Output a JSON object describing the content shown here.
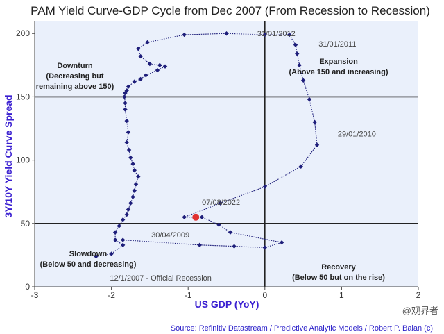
{
  "chart_data": {
    "type": "scatter",
    "title": "PAM Yield Curve-GDP Cycle from Dec 2007 (From Recession to Recession)",
    "xlabel": "US GDP (YoY)",
    "ylabel": "3Y/10Y Yield Curve Spread",
    "xlim": [
      -3,
      2
    ],
    "ylim": [
      0,
      210
    ],
    "x_ticks": [
      "-3",
      "-2",
      "-1",
      "0",
      "1",
      "2"
    ],
    "y_ticks": [
      "0",
      "50",
      "100",
      "150",
      "200"
    ],
    "reference_lines": {
      "x": 0,
      "y": [
        50,
        150
      ]
    },
    "grid": false,
    "series": [
      {
        "points": [
          {
            "x": -2.2,
            "y": 24
          },
          {
            "x": -2.0,
            "y": 26
          },
          {
            "x": -1.85,
            "y": 33
          },
          {
            "x": -1.95,
            "y": 37
          },
          {
            "x": -1.95,
            "y": 43
          },
          {
            "x": -1.9,
            "y": 48
          },
          {
            "x": -1.85,
            "y": 53
          },
          {
            "x": -1.8,
            "y": 57
          },
          {
            "x": -1.78,
            "y": 61
          },
          {
            "x": -1.75,
            "y": 66
          },
          {
            "x": -1.72,
            "y": 71
          },
          {
            "x": -1.7,
            "y": 76
          },
          {
            "x": -1.68,
            "y": 81
          },
          {
            "x": -1.65,
            "y": 87
          },
          {
            "x": -1.7,
            "y": 92
          },
          {
            "x": -1.72,
            "y": 97
          },
          {
            "x": -1.75,
            "y": 102
          },
          {
            "x": -1.77,
            "y": 108
          },
          {
            "x": -1.8,
            "y": 114
          },
          {
            "x": -1.78,
            "y": 122
          },
          {
            "x": -1.8,
            "y": 131
          },
          {
            "x": -1.82,
            "y": 140
          },
          {
            "x": -1.82,
            "y": 145
          },
          {
            "x": -1.83,
            "y": 150
          },
          {
            "x": -1.82,
            "y": 153
          },
          {
            "x": -1.8,
            "y": 155
          },
          {
            "x": -1.78,
            "y": 158
          },
          {
            "x": -1.7,
            "y": 162
          },
          {
            "x": -1.62,
            "y": 164
          },
          {
            "x": -1.55,
            "y": 167
          },
          {
            "x": -1.4,
            "y": 171
          },
          {
            "x": -1.3,
            "y": 174
          },
          {
            "x": -1.37,
            "y": 175
          },
          {
            "x": -1.5,
            "y": 176
          },
          {
            "x": -1.62,
            "y": 182
          },
          {
            "x": -1.65,
            "y": 188
          },
          {
            "x": -1.53,
            "y": 193
          },
          {
            "x": -1.05,
            "y": 199
          },
          {
            "x": -0.5,
            "y": 200
          },
          {
            "x": 0.0,
            "y": 199
          },
          {
            "x": 0.32,
            "y": 199
          },
          {
            "x": 0.4,
            "y": 191
          },
          {
            "x": 0.42,
            "y": 184
          },
          {
            "x": 0.45,
            "y": 175
          },
          {
            "x": 0.5,
            "y": 163
          },
          {
            "x": 0.58,
            "y": 148
          },
          {
            "x": 0.65,
            "y": 130
          },
          {
            "x": 0.68,
            "y": 112
          },
          {
            "x": 0.47,
            "y": 95
          },
          {
            "x": 0.0,
            "y": 79
          },
          {
            "x": -0.58,
            "y": 66
          },
          {
            "x": -1.05,
            "y": 55
          },
          {
            "x": -0.9,
            "y": 55
          },
          {
            "x": -0.82,
            "y": 55
          },
          {
            "x": -0.6,
            "y": 49
          },
          {
            "x": -0.45,
            "y": 43
          },
          {
            "x": 0.22,
            "y": 35
          },
          {
            "x": 0.0,
            "y": 31
          },
          {
            "x": -0.4,
            "y": 32
          },
          {
            "x": -0.85,
            "y": 33
          },
          {
            "x": -1.85,
            "y": 37
          }
        ],
        "highlight": {
          "x": -0.9,
          "y": 55
        }
      }
    ],
    "point_labels": [
      {
        "text": "31/01/2012",
        "x": -0.1,
        "y": 200
      },
      {
        "text": "31/01/2011",
        "x": 0.7,
        "y": 192
      },
      {
        "text": "29/01/2010",
        "x": 0.95,
        "y": 121
      },
      {
        "text": "07/08/2022",
        "x": -0.82,
        "y": 67
      },
      {
        "text": "30/04/2009",
        "x": -1.48,
        "y": 41
      },
      {
        "text": "12/1/2007 - Official Recession",
        "x": -2.02,
        "y": 7
      }
    ],
    "quadrant_labels": [
      {
        "lines": [
          "Downturn",
          "(Decreasing but",
          "remaining above 150)"
        ]
      },
      {
        "lines": [
          "Expansion",
          "(Above 150 and increasing)"
        ]
      },
      {
        "lines": [
          "Slowdown",
          "(Below 50 and decreasing)"
        ]
      },
      {
        "lines": [
          "Recovery",
          "(Below 50 but on the rise)"
        ]
      }
    ],
    "colors": {
      "plot_bg": "#eaf0fb",
      "marker": "#1e1e7a",
      "line": "#1e1e7a",
      "highlight": "#e03131",
      "reference": "#222222",
      "axis_label": "#3a1fd1"
    }
  },
  "source": "Source: Refinitiv Datastream / Predictive Analytic Models / Robert P. Balan (c)",
  "watermark": "@观界者"
}
